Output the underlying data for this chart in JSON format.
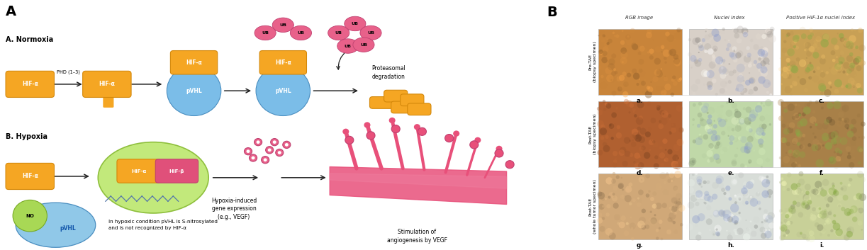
{
  "fig_width": 12.23,
  "fig_height": 3.53,
  "bg_color": "#ffffff",
  "panel_A_label": "A",
  "panel_B_label": "B",
  "normoxia_label": "A. Normoxia",
  "hypoxia_label": "B. Hypoxia",
  "orange": "#F5A623",
  "orange_edge": "#D4880A",
  "blue": "#7BBDE8",
  "blue_edge": "#4A8EC0",
  "pink": "#E8618A",
  "pink_edge": "#C04070",
  "green": "#BDE870",
  "green_edge": "#88BB33",
  "hif_beta_color": "#E0507A",
  "col_headers": [
    "RGB image",
    "Nuclei index",
    "Positive HIF-1α nuclei index"
  ],
  "row_labels": [
    "Pre-TAE\n(biopsy specimen)",
    "Post-TAE\n(biopsy specimen)",
    "Post-TAE\n(whole tumor specimen)"
  ],
  "cell_labels": [
    [
      "a.",
      "b.",
      "c."
    ],
    [
      "d.",
      "e.",
      "f."
    ],
    [
      "g.",
      "h.",
      "i."
    ]
  ],
  "cell_bg_colors": [
    [
      "#C8843A",
      "#D8D0C8",
      "#C8A055"
    ],
    [
      "#B06030",
      "#C0D8A8",
      "#A88048"
    ],
    [
      "#D0A878",
      "#D8DDD8",
      "#C8D098"
    ]
  ],
  "no_label": "NO",
  "pvhl_label": "pVHL",
  "nitrosyl_text": "In hypoxic condition pVHL is S-nitrosylated\nand is not recognized by HIF-α",
  "hypoxia_induced_text": "Hypoxia-induced\ngene expression\n(e.g., VEGF)",
  "stimulation_text": "Stimulation of\nangiogenesis by VEGF",
  "proteasomal_text": "Proteasomal\ndegradation",
  "phd_text": "PHD (1–3)"
}
